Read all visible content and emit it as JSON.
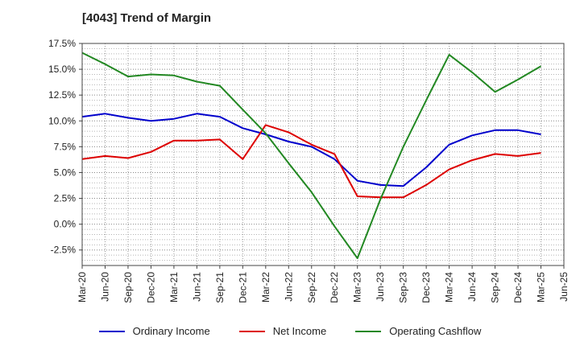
{
  "chart_data": {
    "type": "line",
    "title": "[4043]  Trend of Margin",
    "xlabel": "",
    "ylabel": "",
    "x": [
      "Mar-20",
      "Jun-20",
      "Sep-20",
      "Dec-20",
      "Mar-21",
      "Jun-21",
      "Sep-21",
      "Dec-21",
      "Mar-22",
      "Jun-22",
      "Sep-22",
      "Dec-22",
      "Mar-23",
      "Jun-23",
      "Sep-23",
      "Dec-23",
      "Mar-24",
      "Jun-24",
      "Sep-24",
      "Dec-24",
      "Mar-25",
      "Jun-25"
    ],
    "ylim": [
      -4,
      17.5
    ],
    "yticks": [
      17.5,
      15.0,
      12.5,
      10.0,
      7.5,
      5.0,
      2.5,
      0.0,
      -2.5
    ],
    "ytick_labels": [
      "17.5%",
      "15.0%",
      "12.5%",
      "10.0%",
      "7.5%",
      "5.0%",
      "2.5%",
      "0.0%",
      "-2.5%"
    ],
    "grid": true,
    "legend_position": "bottom",
    "series": [
      {
        "name": "Ordinary Income",
        "color": "#0000cc",
        "values": [
          10.4,
          10.7,
          10.3,
          10.0,
          10.2,
          10.7,
          10.4,
          9.3,
          8.7,
          8.0,
          7.5,
          6.3,
          4.2,
          3.8,
          3.7,
          5.5,
          7.7,
          8.6,
          9.1,
          9.1,
          8.7,
          null
        ]
      },
      {
        "name": "Net Income",
        "color": "#dd0000",
        "values": [
          6.3,
          6.6,
          6.4,
          7.0,
          8.1,
          8.1,
          8.2,
          6.3,
          9.6,
          8.9,
          7.7,
          6.8,
          2.7,
          2.6,
          2.6,
          3.8,
          5.3,
          6.2,
          6.8,
          6.6,
          6.9,
          null
        ]
      },
      {
        "name": "Operating Cashflow",
        "color": "#228822",
        "values": [
          16.6,
          15.5,
          14.3,
          14.5,
          14.4,
          13.8,
          13.4,
          11.1,
          8.8,
          5.9,
          3.1,
          -0.2,
          -3.3,
          2.4,
          7.5,
          12.0,
          16.4,
          14.7,
          12.8,
          14.0,
          15.3,
          null
        ]
      }
    ]
  }
}
